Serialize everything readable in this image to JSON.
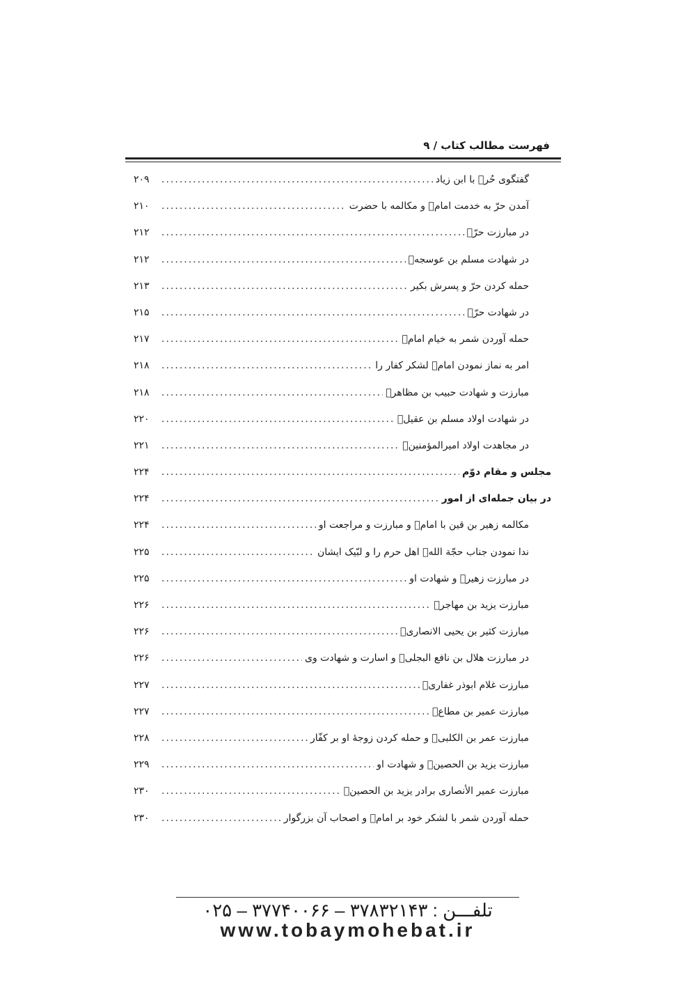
{
  "header": {
    "title": "فهرست مطالب کتاب / ۹"
  },
  "toc": [
    {
      "title": "گفتگوی حُرؑ با ابن زیاد",
      "page": "۲۰۹",
      "bold": false
    },
    {
      "title": "آمدن حرّ به خدمت امامؑ و مکالمه با حضرت",
      "page": "۲۱۰",
      "bold": false
    },
    {
      "title": "در مبارزت حرّؑ",
      "page": "۲۱۲",
      "bold": false
    },
    {
      "title": "در شهادت مسلم بن عوسجهؑ",
      "page": "۲۱۲",
      "bold": false
    },
    {
      "title": "حمله کردن حرّ و پسرش بکیر",
      "page": "۲۱۳",
      "bold": false
    },
    {
      "title": "در شهادت حرّؑ",
      "page": "۲۱۵",
      "bold": false
    },
    {
      "title": "حمله آوردن شمر به خیام امامؑ",
      "page": "۲۱۷",
      "bold": false
    },
    {
      "title": "امر به نماز نمودن امامؑ لشکر کفار را",
      "page": "۲۱۸",
      "bold": false
    },
    {
      "title": "مبارزت و شهادت حبیب بن مظاهرؑ",
      "page": "۲۱۸",
      "bold": false
    },
    {
      "title": "در شهادت اولاد مسلم بن عقیلؑ",
      "page": "۲۲۰",
      "bold": false
    },
    {
      "title": "در مجاهدت اولاد امیرالمؤمنینؑ",
      "page": "۲۲۱",
      "bold": false
    },
    {
      "title": "مجلس و مقام دوّم",
      "page": "۲۲۴",
      "bold": true
    },
    {
      "title": "در بیان جمله‌ای از امور",
      "page": "۲۲۴",
      "bold": true
    },
    {
      "title": "مکالمه زهیر بن قین با امامؑ و مبارزت و مراجعت او",
      "page": "۲۲۴",
      "bold": false
    },
    {
      "title": "ندا نمودن جناب حجّة اللهؑ اهل حرم را و لبّیک ایشان",
      "page": "۲۲۵",
      "bold": false
    },
    {
      "title": "در مبارزت زهیرؑ و شهادت او",
      "page": "۲۲۵",
      "bold": false
    },
    {
      "title": "مبارزت یزید بن مهاجرؑ",
      "page": "۲۲۶",
      "bold": false
    },
    {
      "title": "مبارزت کثیر بن یحیی الانصاریؑ",
      "page": "۲۲۶",
      "bold": false
    },
    {
      "title": "در مبارزت هلال بن نافع البجلیؑ و اسارت و شهادت وی",
      "page": "۲۲۶",
      "bold": false
    },
    {
      "title": "مبارزت غلام ابوذر غفاریؑ",
      "page": "۲۲۷",
      "bold": false
    },
    {
      "title": "مبارزت عمیر بن مطاعؑ",
      "page": "۲۲۷",
      "bold": false
    },
    {
      "title": "مبارزت عمر بن الکلبیؑ و حمله کردن زوجهٔ او بر کفّار",
      "page": "۲۲۸",
      "bold": false
    },
    {
      "title": "مبارزت یزید بن الحصینؑ و شهادت او",
      "page": "۲۲۹",
      "bold": false
    },
    {
      "title": "مبارزت عمیر الأنصاری برادر یزید بن الحصینؑ",
      "page": "۲۳۰",
      "bold": false
    },
    {
      "title": "حمله آوردن شمر با لشکر خود بر امامؑ و اصحاب آن بزرگوار",
      "page": "۲۳۰",
      "bold": false
    }
  ],
  "footer": {
    "phone": "تلفـــن :  ۳۷۸۳۲۱۴۳ – ۳۷۷۴۰۰۶۶ – ۰۲۵",
    "url": "www.tobaymohebat.ir"
  }
}
